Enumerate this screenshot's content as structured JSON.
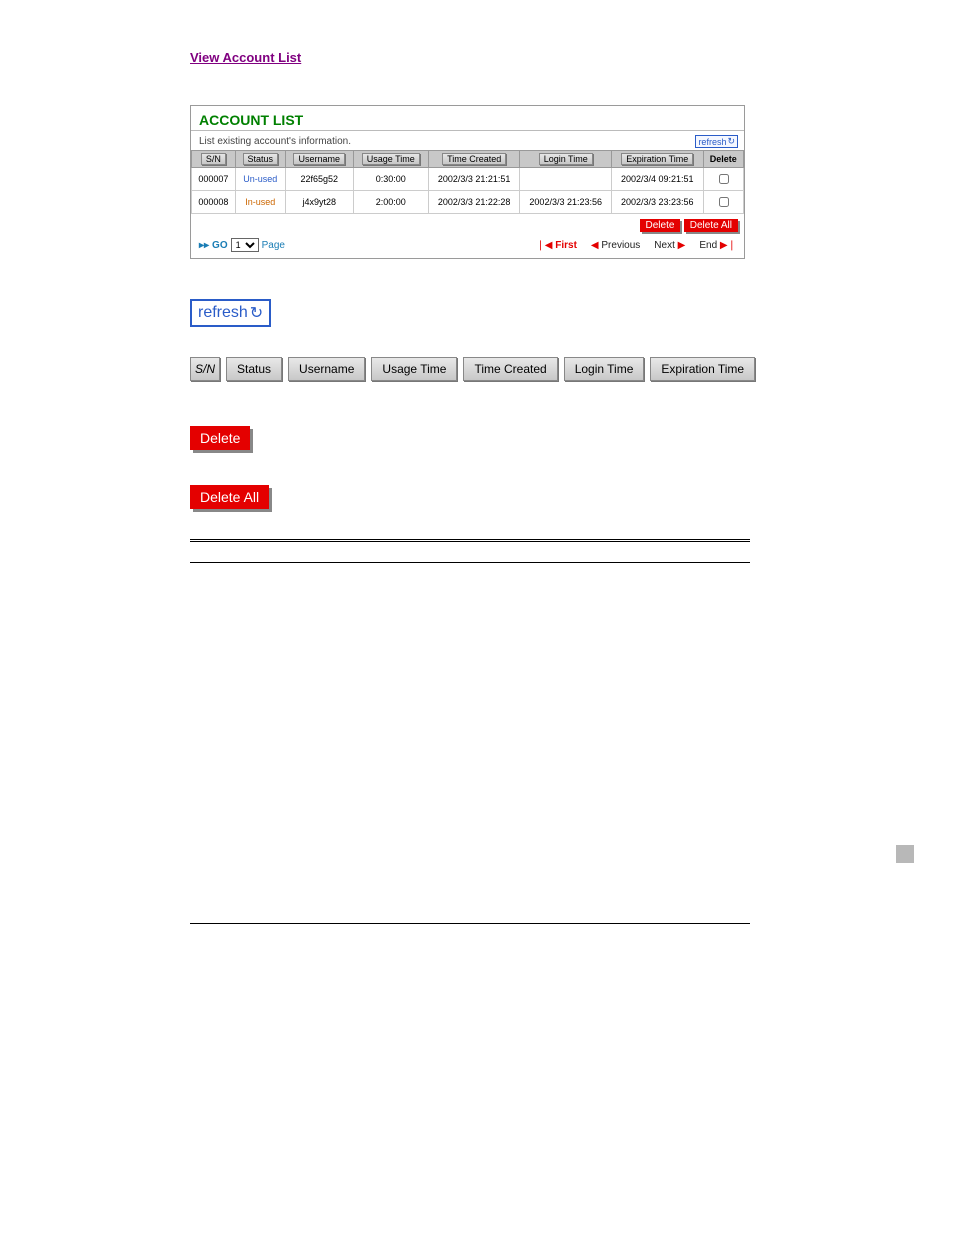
{
  "topLink": "View Account List",
  "panel": {
    "title": "ACCOUNT LIST",
    "subtitle": "List existing account's information.",
    "refresh": "refresh",
    "columns": {
      "sn": "S/N",
      "status": "Status",
      "username": "Username",
      "usage": "Usage Time",
      "created": "Time Created",
      "login": "Login Time",
      "expiration": "Expiration Time",
      "delete": "Delete"
    },
    "rows": [
      {
        "sn": "000007",
        "status": "Un-used",
        "status_class": "status-unused",
        "username": "22f65g52",
        "usage": "0:30:00",
        "created": "2002/3/3 21:21:51",
        "login": "",
        "expiration": "2002/3/4 09:21:51"
      },
      {
        "sn": "000008",
        "status": "In-used",
        "status_class": "status-inused",
        "username": "j4x9yt28",
        "usage": "2:00:00",
        "created": "2002/3/3 21:22:28",
        "login": "2002/3/3 21:23:56",
        "expiration": "2002/3/3 23:23:56"
      }
    ],
    "buttons": {
      "delete": "Delete",
      "deleteAll": "Delete All"
    },
    "pager": {
      "go": "GO",
      "page": "Page",
      "pageNum": "1",
      "first": "First",
      "previous": "Previous",
      "next": "Next",
      "end": "End"
    }
  },
  "bigRefresh": "refresh",
  "headerStrip": {
    "sn": "S/N",
    "status": "Status",
    "username": "Username",
    "usage": "Usage Time",
    "created": "Time Created",
    "login": "Login Time",
    "expiration": "Expiration Time"
  },
  "bigDelete": "Delete",
  "bigDeleteAll": "Delete All",
  "colors": {
    "linkPurple": "#800080",
    "green": "#008000",
    "red": "#e40000",
    "blue": "#2a5cc8"
  }
}
